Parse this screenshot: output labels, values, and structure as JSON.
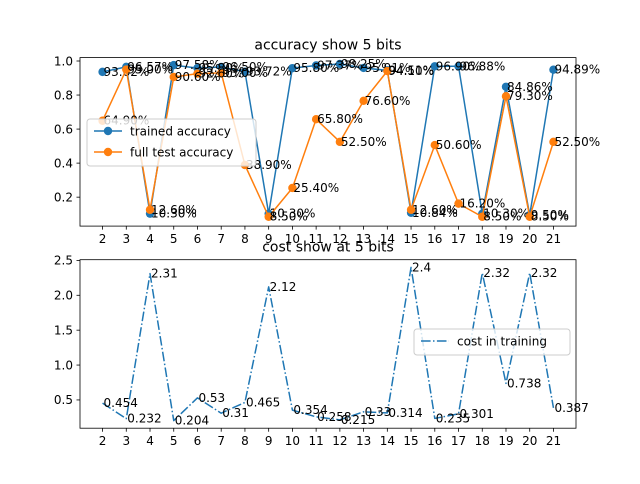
{
  "chart_data": [
    {
      "type": "line",
      "title": "accuracy show 5 bits",
      "xlabel": "",
      "ylabel": "",
      "x": [
        2,
        3,
        4,
        5,
        6,
        7,
        8,
        9,
        10,
        11,
        12,
        13,
        14,
        15,
        16,
        17,
        18,
        19,
        20,
        21
      ],
      "xlim": [
        1.05,
        21.95
      ],
      "ylim": [
        0.03,
        1.02
      ],
      "xticks": [
        2,
        3,
        4,
        5,
        6,
        7,
        8,
        9,
        10,
        11,
        12,
        13,
        14,
        15,
        16,
        17,
        18,
        19,
        20,
        21
      ],
      "yticks": [
        0.2,
        0.4,
        0.6,
        0.8,
        1.0
      ],
      "ytick_labels": [
        "0.2",
        "0.4",
        "0.6",
        "0.8",
        "1.0"
      ],
      "legend": {
        "position": "center-left"
      },
      "grid": false,
      "series": [
        {
          "name": "trained accuracy",
          "color": "#1f77b4",
          "marker": "circle",
          "linestyle": "solid",
          "values": [
            0.9362,
            0.9657,
            0.103,
            0.9758,
            0.958,
            0.965,
            0.9372,
            0.103,
            0.958,
            0.9737,
            0.9825,
            0.9591,
            0.9451,
            0.1084,
            0.969,
            0.9688,
            0.103,
            0.8486,
            0.095,
            0.9489
          ],
          "labels": [
            "93.62%",
            "96.57%",
            "10.30%",
            "97.58%",
            "95.80%",
            "96.50%",
            "93.72%",
            "10.30%",
            "95.80%",
            "97.37%",
            "98.25%",
            "95.91%",
            "94.51%",
            "10.84%",
            "96.90%",
            "96.88%",
            "10.30%",
            "84.86%",
            "9.50%",
            "94.89%"
          ]
        },
        {
          "name": "full test accuracy",
          "color": "#ff7f0e",
          "marker": "circle",
          "linestyle": "solid",
          "values": [
            0.649,
            0.95,
            0.126,
            0.906,
            0.926,
            0.93,
            0.389,
            0.085,
            0.254,
            0.658,
            0.525,
            0.766,
            0.941,
            0.126,
            0.506,
            0.162,
            0.085,
            0.793,
            0.085,
            0.525
          ],
          "labels": [
            "64.90%",
            "95.00%",
            "12.60%",
            "90.60%",
            "92.60%",
            "93.00%",
            "38.90%",
            "8.50%",
            "25.40%",
            "65.80%",
            "52.50%",
            "76.60%",
            "94.10%",
            "12.60%",
            "50.60%",
            "16.20%",
            "8.50%",
            "79.30%",
            "8.50%",
            "52.50%"
          ]
        }
      ]
    },
    {
      "type": "line",
      "title": "cost show at 5 bits",
      "xlabel": "",
      "ylabel": "",
      "x": [
        2,
        3,
        4,
        5,
        6,
        7,
        8,
        9,
        10,
        11,
        12,
        13,
        14,
        15,
        16,
        17,
        18,
        19,
        20,
        21
      ],
      "xlim": [
        1.05,
        21.95
      ],
      "ylim": [
        0.095,
        2.51
      ],
      "xticks": [
        2,
        3,
        4,
        5,
        6,
        7,
        8,
        9,
        10,
        11,
        12,
        13,
        14,
        15,
        16,
        17,
        18,
        19,
        20,
        21
      ],
      "yticks": [
        0.5,
        1.0,
        1.5,
        2.0,
        2.5
      ],
      "ytick_labels": [
        "0.5",
        "1.0",
        "1.5",
        "2.0",
        "2.5"
      ],
      "legend": {
        "position": "center-right"
      },
      "grid": false,
      "series": [
        {
          "name": "cost in training",
          "color": "#1f77b4",
          "marker": "none",
          "linestyle": "dashdot",
          "values": [
            0.454,
            0.232,
            2.31,
            0.204,
            0.53,
            0.31,
            0.465,
            2.12,
            0.354,
            0.258,
            0.215,
            0.33,
            0.314,
            2.4,
            0.235,
            0.301,
            2.32,
            0.738,
            2.32,
            0.387
          ],
          "labels": [
            "0.454",
            "0.232",
            "2.31",
            "0.204",
            "0.53",
            "0.31",
            "0.465",
            "2.12",
            "0.354",
            "0.258",
            "0.215",
            "0.33",
            "0.314",
            "2.4",
            "0.235",
            "0.301",
            "2.32",
            "0.738",
            "2.32",
            "0.387"
          ]
        }
      ]
    }
  ]
}
